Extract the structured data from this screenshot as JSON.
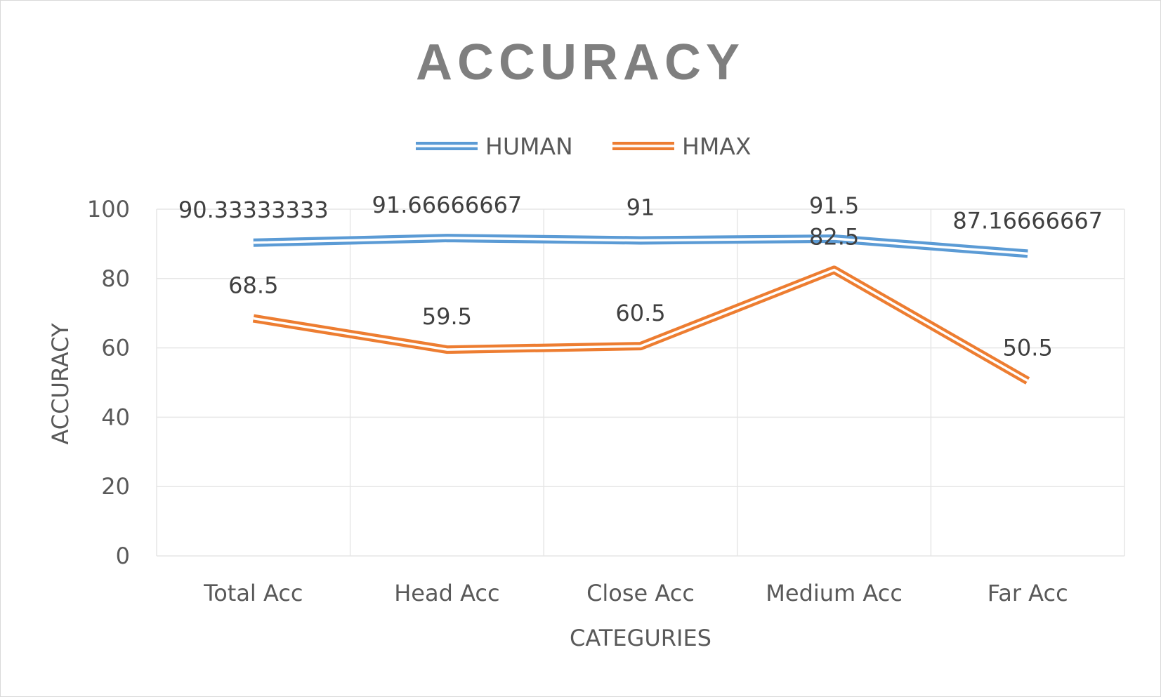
{
  "chart_data": {
    "type": "line",
    "title": "ACCURACY",
    "xlabel": "CATEGURIES",
    "ylabel": "ACCURACY",
    "categories": [
      "Total Acc",
      "Head Acc",
      "Close Acc",
      "Medium Acc",
      "Far Acc"
    ],
    "ylim": [
      0,
      100
    ],
    "yticks": [
      0,
      20,
      40,
      60,
      80,
      100
    ],
    "grid": true,
    "legend_position": "top",
    "series": [
      {
        "name": "HUMAN",
        "color": "#5b9bd5",
        "values": [
          90.33333333,
          91.66666667,
          91,
          91.5,
          87.16666667
        ],
        "labels": [
          "90.33333333",
          "91.66666667",
          "91",
          "91.5",
          "87.16666667"
        ]
      },
      {
        "name": "HMAX",
        "color": "#ed7d31",
        "values": [
          68.5,
          59.5,
          60.5,
          82.5,
          50.5
        ],
        "labels": [
          "68.5",
          "59.5",
          "60.5",
          "82.5",
          "50.5"
        ]
      }
    ],
    "colors": {
      "text": "#595959",
      "title": "#7f7f7f",
      "grid": "#e6e6e6"
    }
  }
}
